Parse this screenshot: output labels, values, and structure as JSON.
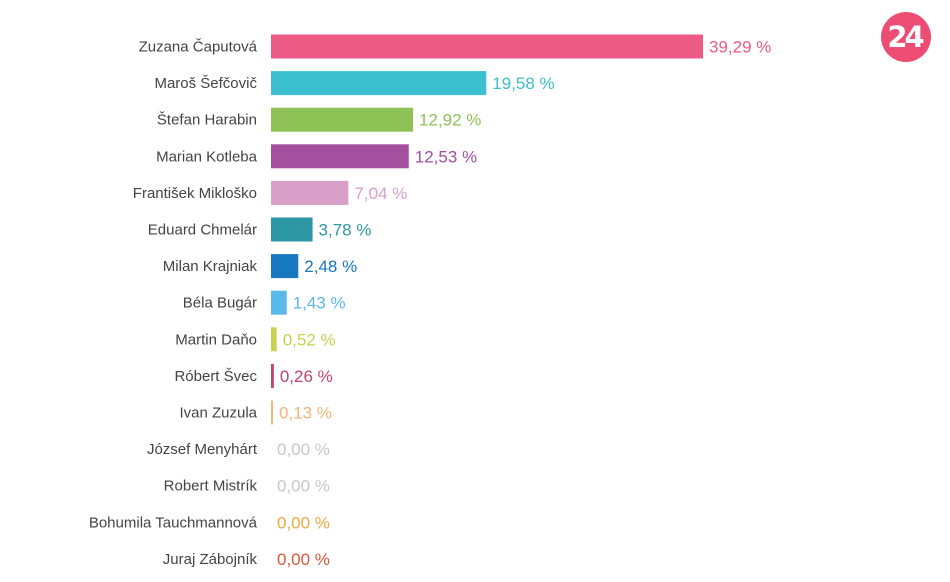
{
  "logo": {
    "text": "24",
    "color": "#ee4d73"
  },
  "chart_data": {
    "type": "bar",
    "orientation": "horizontal",
    "title": "",
    "xlabel": "",
    "ylabel": "",
    "xlim": [
      0,
      40
    ],
    "grid": false,
    "legend": "none",
    "categories": [
      "Zuzana Čaputová",
      "Maroš Šefčovič",
      "Štefan Harabin",
      "Marian Kotleba",
      "František Mikloško",
      "Eduard Chmelár",
      "Milan Krajniak",
      "Béla Bugár",
      "Martin Daňo",
      "Róbert Švec",
      "Ivan Zuzula",
      "József Menyhárt",
      "Robert Mistrík",
      "Bohumila Tauchmannová",
      "Juraj Zábojník"
    ],
    "values": [
      39.29,
      19.58,
      12.92,
      12.53,
      7.04,
      3.78,
      2.48,
      1.43,
      0.52,
      0.26,
      0.13,
      0.0,
      0.0,
      0.0,
      0.0
    ],
    "value_labels": [
      "39,29 %",
      "19,58 %",
      "12,92 %",
      "12,53 %",
      "7,04 %",
      "3,78 %",
      "2,48 %",
      "1,43 %",
      "0,52 %",
      "0,26 %",
      "0,13 %",
      "0,00 %",
      "0,00 %",
      "0,00 %",
      "0,00 %"
    ],
    "colors": [
      "#ec5a86",
      "#3cbfce",
      "#8fc256",
      "#a54f9f",
      "#d8a0c8",
      "#2c96a3",
      "#1878bf",
      "#5bb9ea",
      "#c8d24e",
      "#c44270",
      "#f1b57a",
      "#c8c8c8",
      "#c8c8c8",
      "#efa93f",
      "#d9563a"
    ]
  }
}
